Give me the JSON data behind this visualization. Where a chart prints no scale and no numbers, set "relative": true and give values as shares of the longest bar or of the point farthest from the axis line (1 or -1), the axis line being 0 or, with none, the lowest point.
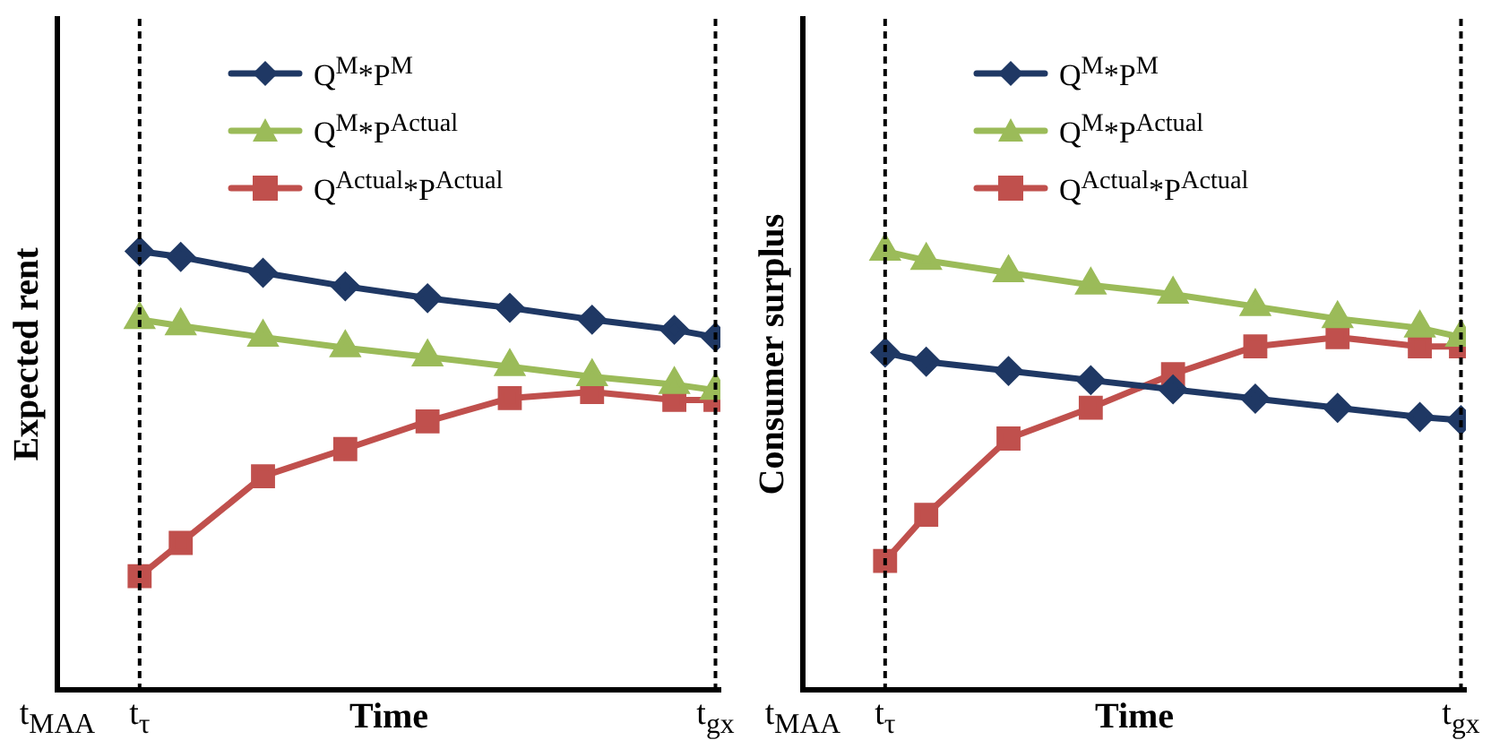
{
  "chart_data": [
    {
      "type": "line",
      "relative": true,
      "xlabel": "Time",
      "ylabel": "Expected rent",
      "categories": [
        "t$_{MAA}$",
        null,
        "t$_{τ}$",
        null,
        null,
        null,
        null,
        null,
        null,
        null,
        null,
        null,
        null,
        null,
        null,
        null,
        "t$_{gx}$"
      ],
      "grid": false,
      "legend": "top",
      "line_style": "solid",
      "ref_lines": [
        {
          "axis": "x",
          "value": "t$_{τ}$",
          "line_style": "dashed",
          "color": "#000000"
        },
        {
          "axis": "x",
          "value": "t$_{gx}$",
          "line_style": "dashed",
          "color": "#000000"
        }
      ],
      "series": [
        {
          "name": "Q$^{M}$*P$^{M}$",
          "color": "#1f3864",
          "marker": "diamond",
          "values": [
            null,
            null,
            1.0,
            0.987,
            null,
            0.951,
            null,
            0.92,
            null,
            0.893,
            null,
            0.871,
            null,
            0.844,
            null,
            0.821,
            0.804
          ]
        },
        {
          "name": "Q$^{M}$*P$^{Actual}$",
          "color": "#9bbb59",
          "marker": "triangle",
          "values": [
            null,
            null,
            0.844,
            0.83,
            null,
            0.804,
            null,
            0.78,
            null,
            0.759,
            null,
            0.737,
            null,
            0.714,
            null,
            0.696,
            0.683
          ]
        },
        {
          "name": "Q$^{Actual}$*P$^{Actual}$",
          "color": "#c0504d",
          "marker": "square",
          "values": [
            null,
            null,
            0.259,
            0.335,
            null,
            0.487,
            null,
            0.549,
            null,
            0.612,
            null,
            0.665,
            null,
            0.679,
            null,
            0.661,
            0.661
          ]
        }
      ]
    },
    {
      "type": "line",
      "relative": true,
      "xlabel": "Time",
      "ylabel": "Consumer surplus",
      "categories": [
        "t$_{MAA}$",
        null,
        "t$_{τ}$",
        null,
        null,
        null,
        null,
        null,
        null,
        null,
        null,
        null,
        null,
        null,
        null,
        null,
        "t$_{gx}$"
      ],
      "grid": false,
      "legend": "top",
      "line_style": "solid",
      "ref_lines": [
        {
          "axis": "x",
          "value": "t$_{τ}$",
          "line_style": "dashed",
          "color": "#000000"
        },
        {
          "axis": "x",
          "value": "t$_{gx}$",
          "line_style": "dashed",
          "color": "#000000"
        }
      ],
      "series": [
        {
          "name": "Q$^{M}$*P$^{M}$",
          "color": "#1f3864",
          "marker": "diamond",
          "values": [
            null,
            null,
            0.769,
            0.748,
            null,
            0.727,
            null,
            0.706,
            null,
            0.685,
            null,
            0.664,
            null,
            0.643,
            null,
            0.622,
            0.615
          ]
        },
        {
          "name": "Q$^{M}$*P$^{Actual}$",
          "color": "#9bbb59",
          "marker": "triangle",
          "values": [
            null,
            null,
            1.0,
            0.979,
            null,
            0.951,
            null,
            0.923,
            null,
            0.902,
            null,
            0.874,
            null,
            0.846,
            null,
            0.825,
            0.804
          ]
        },
        {
          "name": "Q$^{Actual}$*P$^{Actual}$",
          "color": "#c0504d",
          "marker": "square",
          "values": [
            null,
            null,
            0.294,
            0.399,
            null,
            0.573,
            null,
            0.643,
            null,
            0.72,
            null,
            0.783,
            null,
            0.804,
            null,
            0.783,
            0.783
          ]
        }
      ]
    }
  ]
}
